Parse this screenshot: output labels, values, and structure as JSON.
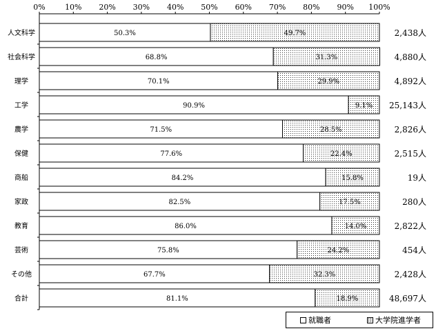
{
  "chart_data": {
    "type": "bar",
    "stacked": true,
    "orientation": "horizontal",
    "x_tick_labels": [
      "0%",
      "10%",
      "20%",
      "30%",
      "40%",
      "50%",
      "60%",
      "70%",
      "80%",
      "90%",
      "100%"
    ],
    "xlim": [
      0,
      100
    ],
    "categories": [
      "人文科学",
      "社会科学",
      "理学",
      "工学",
      "農学",
      "保健",
      "商船",
      "家政",
      "教育",
      "芸術",
      "その他",
      "合計"
    ],
    "totals": [
      "2,438人",
      "4,880人",
      "4,892人",
      "25,143人",
      "2,826人",
      "2,515人",
      "19人",
      "280人",
      "2,822人",
      "454人",
      "2,428人",
      "48,697人"
    ],
    "series": [
      {
        "name": "就職者",
        "values": [
          50.3,
          68.8,
          70.1,
          90.9,
          71.5,
          77.6,
          84.2,
          82.5,
          86.0,
          75.8,
          67.7,
          81.1
        ],
        "labels": [
          "50.3%",
          "68.8%",
          "70.1%",
          "90.9%",
          "71.5%",
          "77.6%",
          "84.2%",
          "82.5%",
          "86.0%",
          "75.8%",
          "67.7%",
          "81.1%"
        ],
        "fill": "white"
      },
      {
        "name": "大学院進学者",
        "values": [
          49.7,
          31.3,
          29.9,
          9.1,
          28.5,
          22.4,
          15.8,
          17.5,
          14.0,
          24.2,
          32.3,
          18.9
        ],
        "labels": [
          "49.7%",
          "31.3%",
          "29.9%",
          "9.1%",
          "28.5%",
          "22.4%",
          "15.8%",
          "17.5%",
          "14.0%",
          "24.2%",
          "32.3%",
          "18.9%"
        ],
        "fill": "dotted"
      }
    ],
    "legend": "bottom-right",
    "grid": false
  }
}
